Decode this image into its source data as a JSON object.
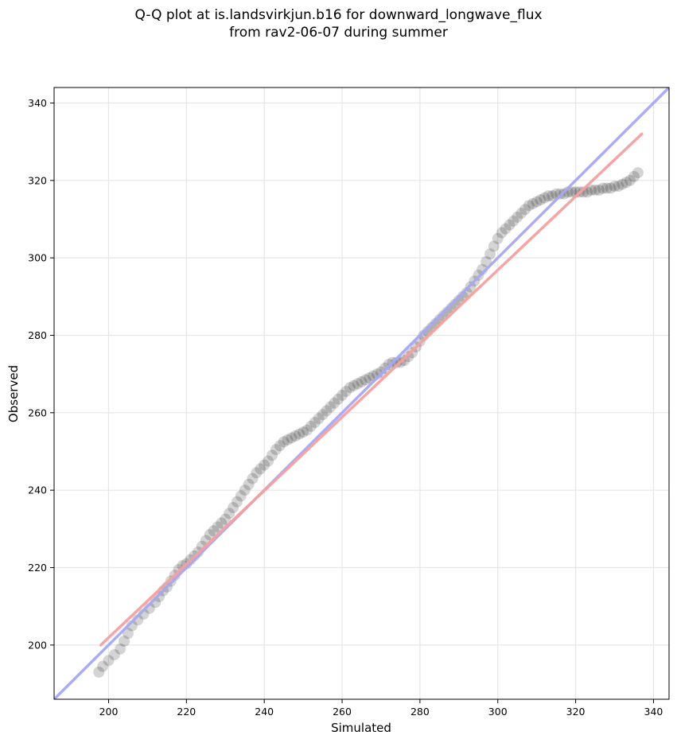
{
  "title_line1": "Q-Q plot at is.landsvirkjun.b16 for downward_longwave_flux",
  "title_line2": "from rav2-06-07 during summer",
  "chart_data": {
    "type": "scatter",
    "xlabel": "Simulated",
    "ylabel": "Observed",
    "xlim": [
      186,
      344
    ],
    "ylim": [
      186,
      344
    ],
    "xticks": [
      200,
      220,
      240,
      260,
      280,
      300,
      320,
      340
    ],
    "yticks": [
      200,
      220,
      240,
      260,
      280,
      300,
      320,
      340
    ],
    "grid": true,
    "points": {
      "x": [
        197.5,
        198.5,
        200,
        201.5,
        203,
        204,
        205,
        206,
        207.5,
        209,
        210.5,
        212,
        213,
        214,
        215,
        216,
        217,
        218,
        219,
        220,
        221,
        222,
        223,
        224,
        225,
        226,
        227,
        228,
        229,
        230,
        231,
        232,
        233,
        234,
        235,
        236,
        237,
        238,
        239,
        240,
        241,
        242,
        243,
        244,
        245,
        246,
        247,
        248,
        249,
        250,
        251,
        252,
        253,
        254,
        255,
        256,
        257,
        258,
        259,
        260,
        261,
        262,
        263,
        264,
        265,
        266,
        267,
        268,
        269,
        270,
        271,
        272,
        273,
        274,
        275,
        276,
        277,
        278,
        279,
        280,
        281,
        282,
        283,
        284,
        285,
        286,
        287,
        288,
        289,
        290,
        291,
        292,
        293,
        294,
        295,
        296,
        297,
        298,
        299,
        300,
        301,
        302,
        303,
        304,
        305,
        306,
        307,
        308,
        309,
        310,
        311,
        312,
        313,
        314,
        315,
        316,
        317,
        318,
        319,
        320,
        321,
        322,
        323,
        324,
        325,
        326,
        327,
        328,
        329,
        330,
        331,
        332,
        333,
        334,
        335,
        336
      ],
      "y": [
        193,
        194.5,
        196,
        197.5,
        199,
        201,
        203,
        205,
        206.5,
        208,
        209.5,
        211,
        212.5,
        214,
        215,
        216.5,
        218,
        219.5,
        220.5,
        221,
        222,
        223,
        224,
        225.5,
        227,
        228.5,
        229.5,
        230.5,
        231.5,
        232.5,
        234,
        235.5,
        237,
        238.5,
        240,
        241.5,
        243,
        244.5,
        245.5,
        246.5,
        247.5,
        249,
        250.5,
        251.5,
        252.5,
        253,
        253.5,
        254,
        254.5,
        255,
        255.5,
        256.5,
        257.5,
        258.5,
        259.5,
        260.5,
        261.5,
        262.5,
        263.5,
        264.5,
        265.5,
        266.5,
        267,
        267.5,
        268,
        268.5,
        269,
        269.5,
        270,
        270.5,
        271.5,
        272.5,
        273,
        273,
        273,
        273.5,
        274.5,
        275.5,
        277,
        278.5,
        280,
        281,
        282,
        283,
        284,
        285,
        286,
        287,
        288,
        289,
        290,
        291,
        292.5,
        294,
        295.5,
        297,
        299,
        301,
        303,
        305,
        306.5,
        307.5,
        308.5,
        309.5,
        310.5,
        311.5,
        312.5,
        313.5,
        314,
        314.5,
        315,
        315.5,
        316,
        316,
        316.5,
        316.5,
        316.5,
        317,
        317,
        317,
        317,
        317,
        317,
        317.5,
        317.5,
        317.5,
        318,
        318,
        318,
        318.5,
        318.5,
        319,
        319.5,
        320,
        321,
        322
      ]
    },
    "line_red": {
      "x": [
        198,
        337
      ],
      "y": [
        200,
        332
      ]
    },
    "line_blue": {
      "x": [
        186,
        344
      ],
      "y": [
        186,
        344
      ]
    },
    "colors": {
      "points": "#000000",
      "line_red": "#f4a0a0",
      "line_blue": "#a8a8f4"
    }
  }
}
